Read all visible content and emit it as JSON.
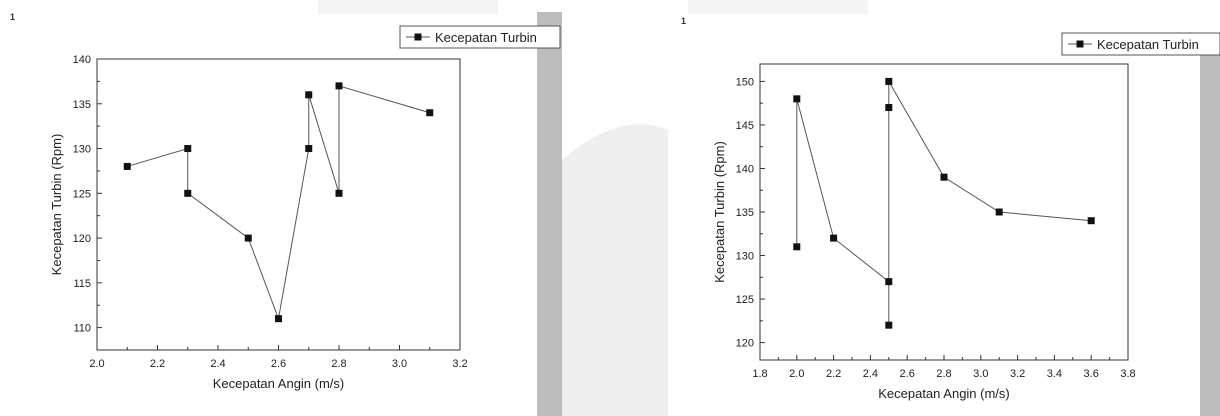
{
  "page": {
    "left_window_number": "1",
    "right_window_number": "1",
    "colors": {
      "side_bar": "#bdbdbd",
      "watermark": "#eeeeee",
      "axis": "#333333",
      "marker": "#111111",
      "line": "#555555"
    }
  },
  "chart_data": [
    {
      "type": "line",
      "title": "",
      "xlabel": "Kecepatan Angin (m/s)",
      "ylabel": "Kecepatan Turbin (Rpm)",
      "xlim": [
        2.0,
        3.2
      ],
      "ylim": [
        107.5,
        140
      ],
      "xticks": [
        "2.0",
        "2.2",
        "2.4",
        "2.6",
        "2.8",
        "3.0",
        "3.2"
      ],
      "yticks": [
        "110",
        "115",
        "120",
        "125",
        "130",
        "135",
        "140"
      ],
      "legend": {
        "label": "Kecepatan Turbin",
        "placement": "top-right"
      },
      "series": [
        {
          "name": "Kecepatan Turbin",
          "x": [
            2.1,
            2.3,
            2.3,
            2.5,
            2.6,
            2.7,
            2.7,
            2.8,
            2.8,
            3.1
          ],
          "y": [
            128,
            130,
            125,
            120,
            111,
            130,
            136,
            125,
            137,
            134
          ]
        }
      ]
    },
    {
      "type": "line",
      "title": "",
      "xlabel": "Kecepatan Angin (m/s)",
      "ylabel": "Kecepatan Turbin (Rpm)",
      "xlim": [
        1.8,
        3.8
      ],
      "ylim": [
        118,
        152
      ],
      "xticks": [
        "1.8",
        "2.0",
        "2.2",
        "2.4",
        "2.6",
        "2.8",
        "3.0",
        "3.2",
        "3.4",
        "3.6",
        "3.8"
      ],
      "yticks": [
        "120",
        "125",
        "130",
        "135",
        "140",
        "145",
        "150"
      ],
      "legend": {
        "label": "Kecepatan Turbin",
        "placement": "top-right"
      },
      "series": [
        {
          "name": "Kecepatan Turbin",
          "x": [
            2.0,
            2.0,
            2.2,
            2.5,
            2.5,
            2.5,
            2.5,
            2.8,
            3.1,
            3.6
          ],
          "y": [
            131,
            148,
            132,
            127,
            122,
            147,
            150,
            139,
            135,
            134
          ]
        }
      ]
    }
  ]
}
